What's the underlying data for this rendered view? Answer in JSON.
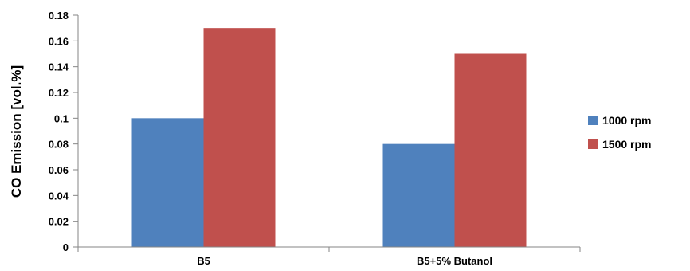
{
  "chart_data": {
    "type": "bar",
    "title": "",
    "xlabel": "",
    "ylabel": "CO Emission  [vol.%]",
    "ylim": [
      0,
      0.18
    ],
    "yticks": [
      "0",
      "0.02",
      "0.04",
      "0.06",
      "0.08",
      "0.1",
      "0.12",
      "0.14",
      "0.16",
      "0.18"
    ],
    "categories": [
      "B5",
      "B5+5% Butanol"
    ],
    "series": [
      {
        "name": "1000 rpm",
        "color": "#4F81BD",
        "values": [
          0.1,
          0.08
        ]
      },
      {
        "name": "1500 rpm",
        "color": "#C0504D",
        "values": [
          0.17,
          0.15
        ]
      }
    ],
    "grid": false,
    "legend_position": "right"
  }
}
